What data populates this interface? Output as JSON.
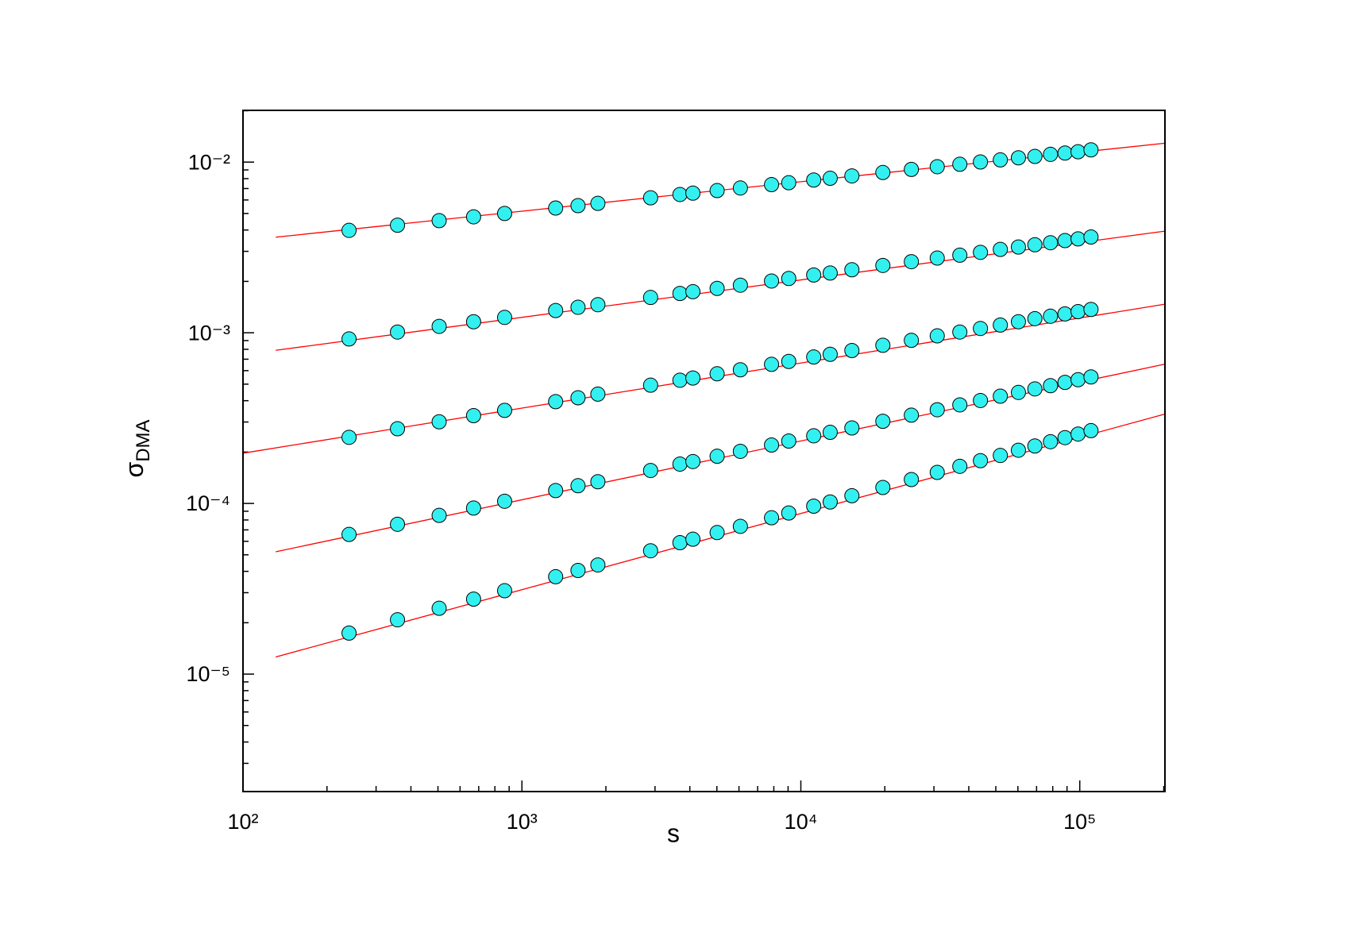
{
  "chart_data": {
    "type": "scatter",
    "x_label": "s",
    "y_label": "σ",
    "y_label_sub": "DMA",
    "x_log": true,
    "y_log": true,
    "xlim": [
      100,
      202000
    ],
    "ylim": [
      2.05e-06,
      0.0201
    ],
    "xticks": [
      {
        "value": 100,
        "label": "10²"
      },
      {
        "value": 1000,
        "label": "10³"
      },
      {
        "value": 10000,
        "label": "10⁴"
      },
      {
        "value": 100000,
        "label": "10⁵"
      }
    ],
    "yticks": [
      {
        "value": 1e-05,
        "label": "10⁻⁵"
      },
      {
        "value": 0.0001,
        "label": "10⁻⁴"
      },
      {
        "value": 0.001,
        "label": "10⁻³"
      },
      {
        "value": 0.01,
        "label": "10⁻²"
      }
    ],
    "marker_color": "#33f0f0",
    "fit_color": "#ff0000",
    "x": [
      240,
      358,
      505,
      671,
      867,
      1321,
      1589,
      1872,
      2893,
      3686,
      4102,
      5010,
      6070,
      7850,
      9050,
      11120,
      12740,
      15240,
      19680,
      24900,
      30830,
      37150,
      44040,
      51900,
      60260,
      69030,
      78520,
      88520,
      98600,
      109700
    ],
    "series": [
      {
        "values": [
          0.00398,
          0.00427,
          0.00454,
          0.00478,
          0.005,
          0.00538,
          0.00556,
          0.00573,
          0.00618,
          0.00646,
          0.00658,
          0.00681,
          0.00705,
          0.00738,
          0.00757,
          0.00785,
          0.00804,
          0.0083,
          0.00869,
          0.00906,
          0.0094,
          0.00971,
          0.01002,
          0.0103,
          0.0106,
          0.0108,
          0.0111,
          0.0113,
          0.0115,
          0.0118
        ]
      },
      {
        "values": [
          0.00092,
          0.00101,
          0.00109,
          0.00116,
          0.00123,
          0.00135,
          0.00141,
          0.00146,
          0.00161,
          0.0017,
          0.00174,
          0.00182,
          0.0019,
          0.00201,
          0.00208,
          0.00218,
          0.00224,
          0.00234,
          0.00248,
          0.00261,
          0.00274,
          0.00285,
          0.00296,
          0.00308,
          0.00318,
          0.00328,
          0.00337,
          0.00347,
          0.00355,
          0.00364
        ]
      },
      {
        "values": [
          0.000244,
          0.000274,
          0.000301,
          0.000327,
          0.000351,
          0.000395,
          0.000416,
          0.000437,
          0.000493,
          0.000527,
          0.000543,
          0.000575,
          0.000607,
          0.000653,
          0.000679,
          0.000721,
          0.000748,
          0.000787,
          0.000845,
          0.000903,
          0.000959,
          0.00101,
          0.00106,
          0.00111,
          0.00116,
          0.00121,
          0.00125,
          0.00129,
          0.00133,
          0.00137
        ]
      },
      {
        "values": [
          6.58e-05,
          7.55e-05,
          8.51e-05,
          9.4e-05,
          0.000103,
          0.000119,
          0.000127,
          0.000134,
          0.000156,
          0.00017,
          0.000176,
          0.000189,
          0.000202,
          0.00022,
          0.000232,
          0.000249,
          0.000261,
          0.000277,
          0.000303,
          0.000329,
          0.000354,
          0.000378,
          0.000401,
          0.000425,
          0.000447,
          0.000469,
          0.00049,
          0.000512,
          0.000531,
          0.000551
        ]
      },
      {
        "values": [
          1.74e-05,
          2.08e-05,
          2.43e-05,
          2.75e-05,
          3.08e-05,
          3.72e-05,
          4.05e-05,
          4.36e-05,
          5.28e-05,
          5.89e-05,
          6.17e-05,
          6.75e-05,
          7.34e-05,
          8.24e-05,
          8.79e-05,
          9.64e-05,
          0.000102,
          0.000111,
          0.000124,
          0.000138,
          0.000152,
          0.000165,
          0.000178,
          0.000191,
          0.000205,
          0.000217,
          0.00023,
          0.000243,
          0.000255,
          0.000267
        ]
      }
    ],
    "fits": [
      {
        "x": [
          131,
          202000
        ],
        "values": [
          0.00363,
          0.0129
        ]
      },
      {
        "x": [
          131,
          202000
        ],
        "values": [
          0.000789,
          0.00394
        ]
      },
      {
        "x": [
          100,
          202000
        ],
        "values": [
          0.000197,
          0.00147
        ]
      },
      {
        "x": [
          131,
          202000
        ],
        "values": [
          5.21e-05,
          0.000655
        ]
      },
      {
        "x": [
          131,
          202000
        ],
        "values": [
          1.26e-05,
          0.000334
        ]
      }
    ]
  }
}
